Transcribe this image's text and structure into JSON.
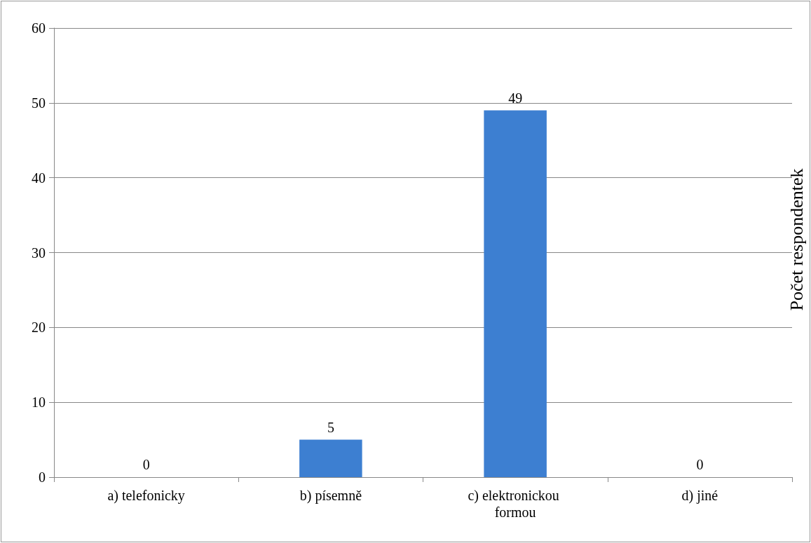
{
  "chart_data": {
    "type": "bar",
    "ylabel": "Počet respondentek",
    "categories": [
      "a) telefonicky",
      "b) písemně",
      "c) elektronickou formou",
      "d) jiné"
    ],
    "values": [
      0,
      5,
      49,
      0
    ],
    "color": "#3d7fd1",
    "ylim": [
      0,
      60
    ],
    "yticks": [
      0,
      10,
      20,
      30,
      40,
      50,
      60
    ],
    "grid": "y",
    "data_labels": true
  }
}
